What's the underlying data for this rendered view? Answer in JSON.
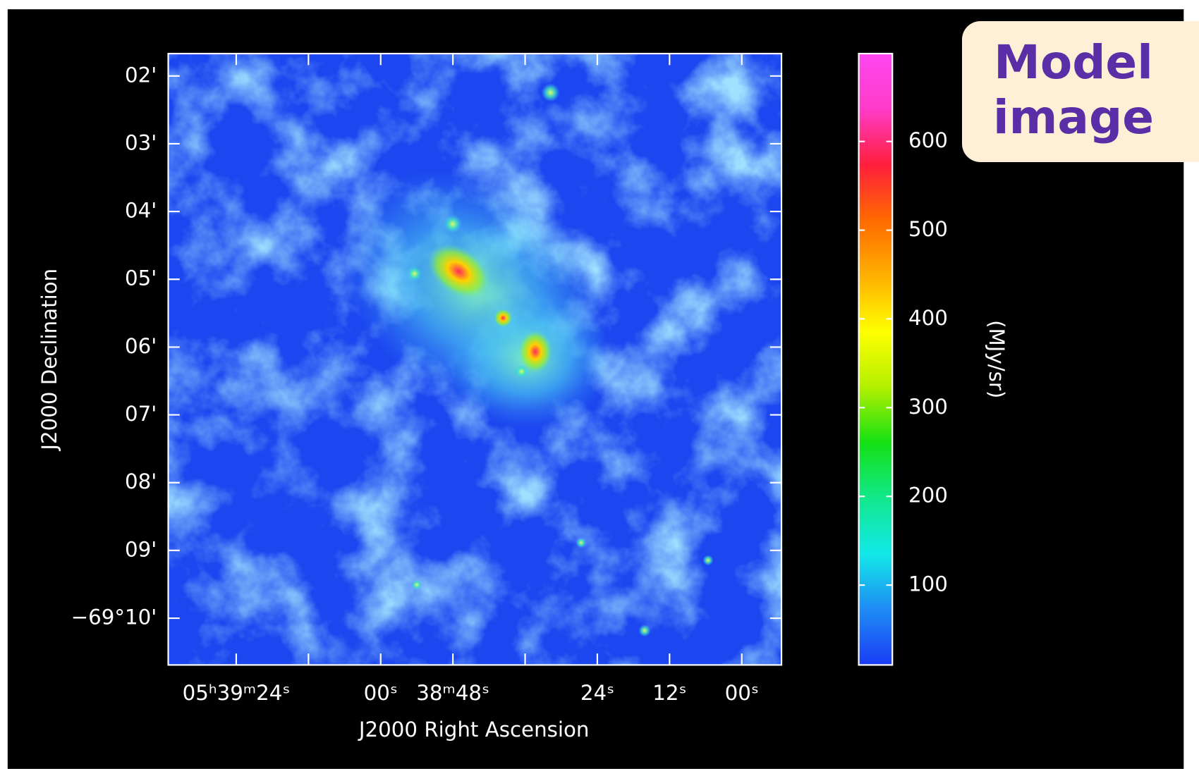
{
  "chart_data": {
    "type": "image",
    "annotation": "Model image",
    "x_label": "J2000 Right Ascension",
    "y_label": "J2000 Declination",
    "colorbar_label": "(MJy/sr)",
    "xlim": [
      20375.3,
      20273.4
    ],
    "xticks": [
      {
        "value": 20364,
        "label": "05ʰ39ᵐ24ˢ"
      },
      {
        "value": 20352,
        "label": null
      },
      {
        "value": 20340,
        "label": "00ˢ"
      },
      {
        "value": 20328,
        "label": "38ᵐ48ˢ"
      },
      {
        "value": 20316,
        "label": null
      },
      {
        "value": 20304,
        "label": "24ˢ"
      },
      {
        "value": 20292,
        "label": "12ˢ"
      },
      {
        "value": 20280,
        "label": "00ˢ"
      }
    ],
    "ylim": [
      -4150.69,
      -4141.67
    ],
    "yticks": [
      {
        "value": -4142,
        "label": "02'"
      },
      {
        "value": -4143,
        "label": "03'"
      },
      {
        "value": -4144,
        "label": "04'"
      },
      {
        "value": -4145,
        "label": "05'"
      },
      {
        "value": -4146,
        "label": "06'"
      },
      {
        "value": -4147,
        "label": "07'"
      },
      {
        "value": -4148,
        "label": "08'"
      },
      {
        "value": -4149,
        "label": "09'"
      },
      {
        "value": -4150,
        "label": "−69°10'"
      }
    ],
    "clim": [
      10,
      699
    ],
    "cticks": [
      100,
      200,
      300,
      400,
      500,
      600
    ],
    "colormap": [
      "#1a3cf5",
      "#1f8cf5",
      "#12e8e8",
      "#12e88c",
      "#14e014",
      "#b4f000",
      "#ffff00",
      "#ffb000",
      "#ff6a00",
      "#ff1e3c",
      "#ff3cc8",
      "#ff46f0"
    ]
  }
}
